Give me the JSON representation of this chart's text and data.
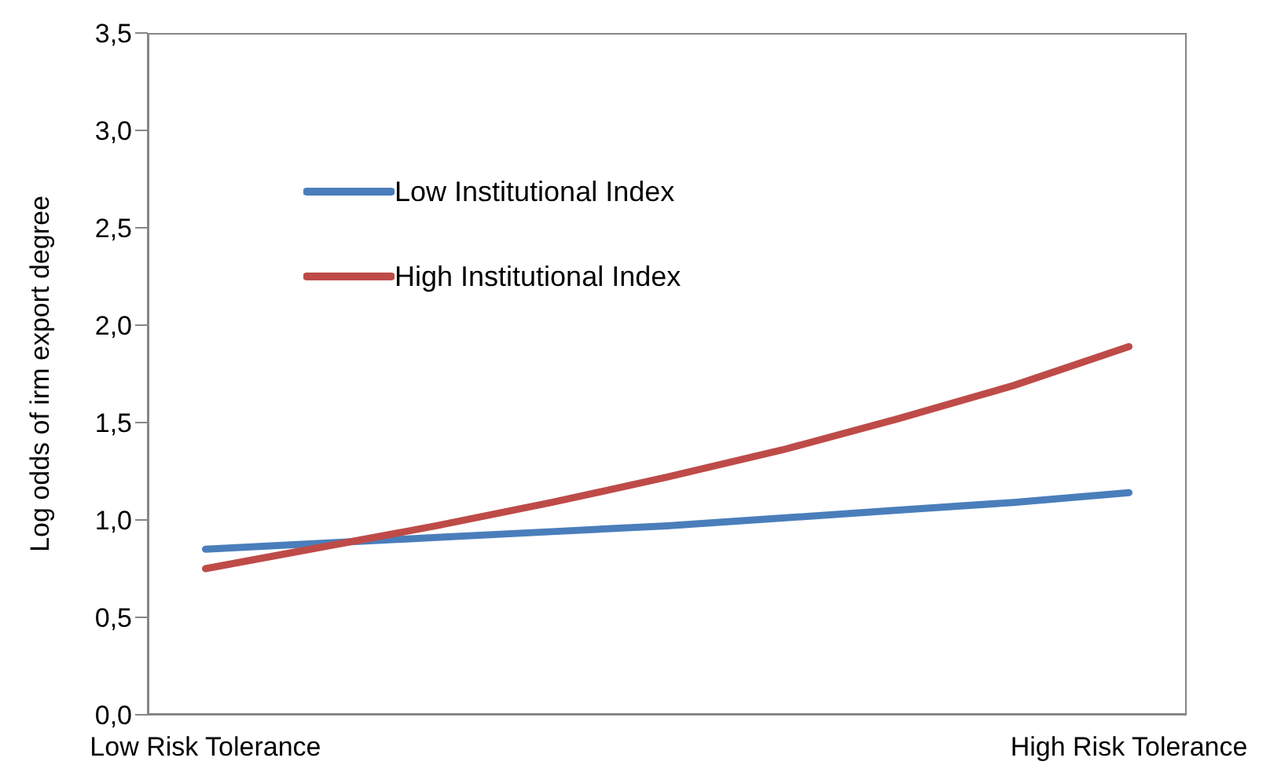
{
  "chart_data": {
    "type": "line",
    "ylabel": "Log odds of irm export degree",
    "categories": [
      "Low Risk Tolerance",
      null,
      null,
      null,
      null,
      null,
      null,
      null,
      "High Risk Tolerance"
    ],
    "series": [
      {
        "name": "Low Institutional Index",
        "color": "#4a7ebb",
        "values": [
          0.85,
          0.88,
          0.91,
          0.94,
          0.97,
          1.01,
          1.05,
          1.09,
          1.14
        ]
      },
      {
        "name": "High Institutional Index",
        "color": "#be4b48",
        "values": [
          0.75,
          0.86,
          0.97,
          1.09,
          1.22,
          1.36,
          1.52,
          1.69,
          1.89
        ]
      }
    ],
    "ylim": [
      0,
      3.5
    ],
    "yticks": [
      {
        "value": 0,
        "label": "0,0"
      },
      {
        "value": 0.5,
        "label": "0,5"
      },
      {
        "value": 1,
        "label": "1,0"
      },
      {
        "value": 1.5,
        "label": "1,5"
      },
      {
        "value": 2,
        "label": "2,0"
      },
      {
        "value": 2.5,
        "label": "2,5"
      },
      {
        "value": 3,
        "label": "3,0"
      },
      {
        "value": 3.5,
        "label": "3,5"
      }
    ],
    "grid": false,
    "legend": "top left",
    "marker": "none",
    "line_style": "solid"
  }
}
